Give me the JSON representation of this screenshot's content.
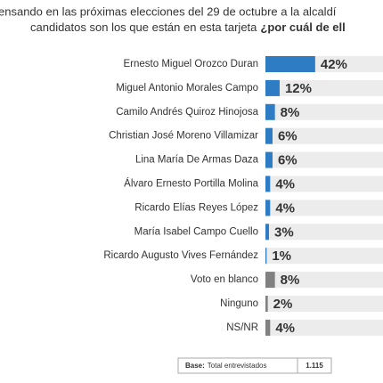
{
  "chart_data": {
    "type": "bar",
    "title_lines": [
      "ensando en las próximas elecciones del 29 de octubre  a la alcaldí",
      "candidatos son los que  están en esta tarjeta"
    ],
    "title_emphasis": "¿por cuál de ell",
    "categories": [
      "Ernesto Miguel Orozco Duran",
      "Miguel Antonio Morales Campo",
      "Camilo Andrés Quiroz Hinojosa",
      "Christian José Moreno Villamizar",
      "Lina María De Armas Daza",
      "Álvaro Ernesto Portilla Molina",
      "Ricardo Elías Reyes López",
      "María Isabel Campo Cuello",
      "Ricardo Augusto Vives Fernández",
      "Voto en blanco",
      "Ninguno",
      "NS/NR"
    ],
    "values": [
      42,
      12,
      8,
      6,
      6,
      4,
      4,
      3,
      1,
      8,
      2,
      4
    ],
    "value_labels": [
      "42%",
      "12%",
      "8%",
      "6%",
      "6%",
      "4%",
      "4%",
      "3%",
      "1%",
      "8%",
      "2%",
      "4%"
    ],
    "colors": [
      "#2e7cc4",
      "#2e7cc4",
      "#2e7cc4",
      "#2e7cc4",
      "#2e7cc4",
      "#2e7cc4",
      "#2e7cc4",
      "#2e7cc4",
      "#2e7cc4",
      "#808080",
      "#808080",
      "#808080"
    ],
    "track_color": "#ececec",
    "xlim": [
      0,
      100
    ],
    "footer": {
      "base_label": "Base:",
      "base_text": "Total entrevistados",
      "base_value": "1.115"
    }
  }
}
